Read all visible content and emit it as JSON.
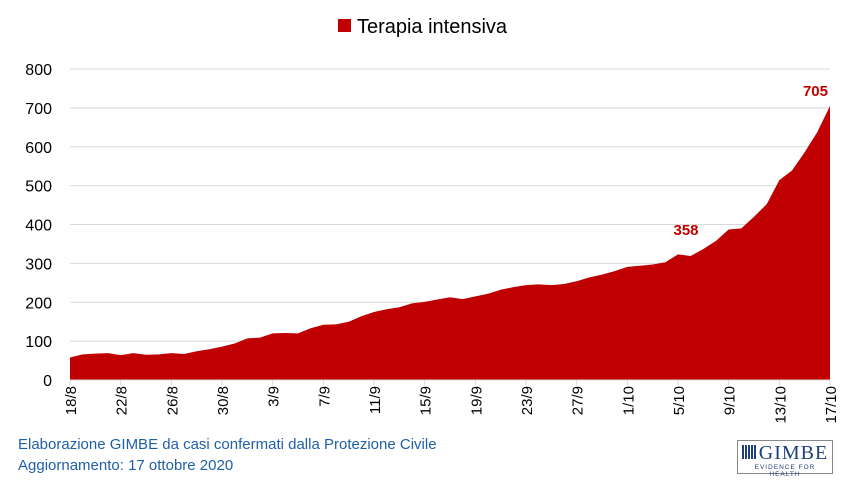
{
  "chart_data": {
    "type": "area",
    "title": "",
    "legend": [
      {
        "name": "Terapia intensiva",
        "color": "#c00000"
      }
    ],
    "legend_placement": "top-center",
    "x": [
      "18/8",
      "19/8",
      "20/8",
      "21/8",
      "22/8",
      "23/8",
      "24/8",
      "25/8",
      "26/8",
      "27/8",
      "28/8",
      "29/8",
      "30/8",
      "31/8",
      "1/9",
      "2/9",
      "3/9",
      "4/9",
      "5/9",
      "6/9",
      "7/9",
      "8/9",
      "9/9",
      "10/9",
      "11/9",
      "12/9",
      "13/9",
      "14/9",
      "15/9",
      "16/9",
      "17/9",
      "18/9",
      "19/9",
      "20/9",
      "21/9",
      "22/9",
      "23/9",
      "24/9",
      "25/9",
      "26/9",
      "27/9",
      "28/9",
      "29/9",
      "30/9",
      "1/10",
      "2/10",
      "3/10",
      "4/10",
      "5/10",
      "6/10",
      "7/10",
      "8/10",
      "9/10",
      "10/10",
      "11/10",
      "12/10",
      "13/10",
      "14/10",
      "15/10",
      "16/10",
      "17/10"
    ],
    "series": [
      {
        "name": "Terapia intensiva",
        "values": [
          58,
          66,
          68,
          69,
          64,
          69,
          65,
          66,
          69,
          67,
          74,
          79,
          86,
          94,
          107,
          109,
          120,
          121,
          120,
          133,
          142,
          143,
          150,
          164,
          175,
          182,
          187,
          197,
          201,
          207,
          213,
          208,
          215,
          222,
          232,
          239,
          244,
          246,
          244,
          247,
          254,
          264,
          271,
          280,
          291,
          294,
          297,
          303,
          323,
          319,
          337,
          358,
          387,
          390,
          420,
          452,
          514,
          539,
          586,
          638,
          705
        ]
      }
    ],
    "x_tick_labels": [
      "18/8",
      "22/8",
      "26/8",
      "30/8",
      "3/9",
      "7/9",
      "11/9",
      "15/9",
      "19/9",
      "23/9",
      "27/9",
      "1/10",
      "5/10",
      "9/10",
      "13/10",
      "17/10"
    ],
    "y_ticks": [
      0,
      100,
      200,
      300,
      400,
      500,
      600,
      700,
      800
    ],
    "ylim": [
      0,
      800
    ],
    "grid": true,
    "annotations": [
      {
        "x": "8/10",
        "label": "358"
      },
      {
        "x": "17/10",
        "label": "705"
      }
    ],
    "xlabel": "",
    "ylabel": ""
  },
  "footer": {
    "source": "Elaborazione GIMBE da casi confermati dalla Protezione Civile",
    "update": "Aggiornamento: 17 ottobre 2020"
  },
  "logo": {
    "name": "GIMBE",
    "tagline": "EVIDENCE FOR HEALTH"
  }
}
